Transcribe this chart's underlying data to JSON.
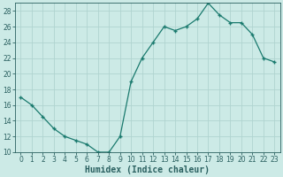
{
  "hours": [
    0,
    1,
    2,
    3,
    4,
    5,
    6,
    7,
    8,
    9,
    10,
    11,
    12,
    13,
    14,
    15,
    16,
    17,
    18,
    19,
    20,
    21,
    22,
    23
  ],
  "humidex": [
    17,
    16,
    14.5,
    13,
    12,
    11.5,
    11,
    10,
    10,
    12,
    19,
    22,
    24,
    26,
    25.5,
    26,
    27,
    29,
    27.5,
    26.5,
    26.5,
    25,
    22,
    21.5
  ],
  "line_color": "#1a7a6e",
  "bg_color": "#cceae6",
  "grid_color": "#b0d4d0",
  "axis_color": "#2a6060",
  "xlabel": "Humidex (Indice chaleur)",
  "ylim": [
    10,
    29
  ],
  "xlim": [
    -0.5,
    23.5
  ],
  "yticks": [
    10,
    12,
    14,
    16,
    18,
    20,
    22,
    24,
    26,
    28
  ],
  "xticks": [
    0,
    1,
    2,
    3,
    4,
    5,
    6,
    7,
    8,
    9,
    10,
    11,
    12,
    13,
    14,
    15,
    16,
    17,
    18,
    19,
    20,
    21,
    22,
    23
  ],
  "tick_fontsize": 5.5,
  "xlabel_fontsize": 7.0
}
